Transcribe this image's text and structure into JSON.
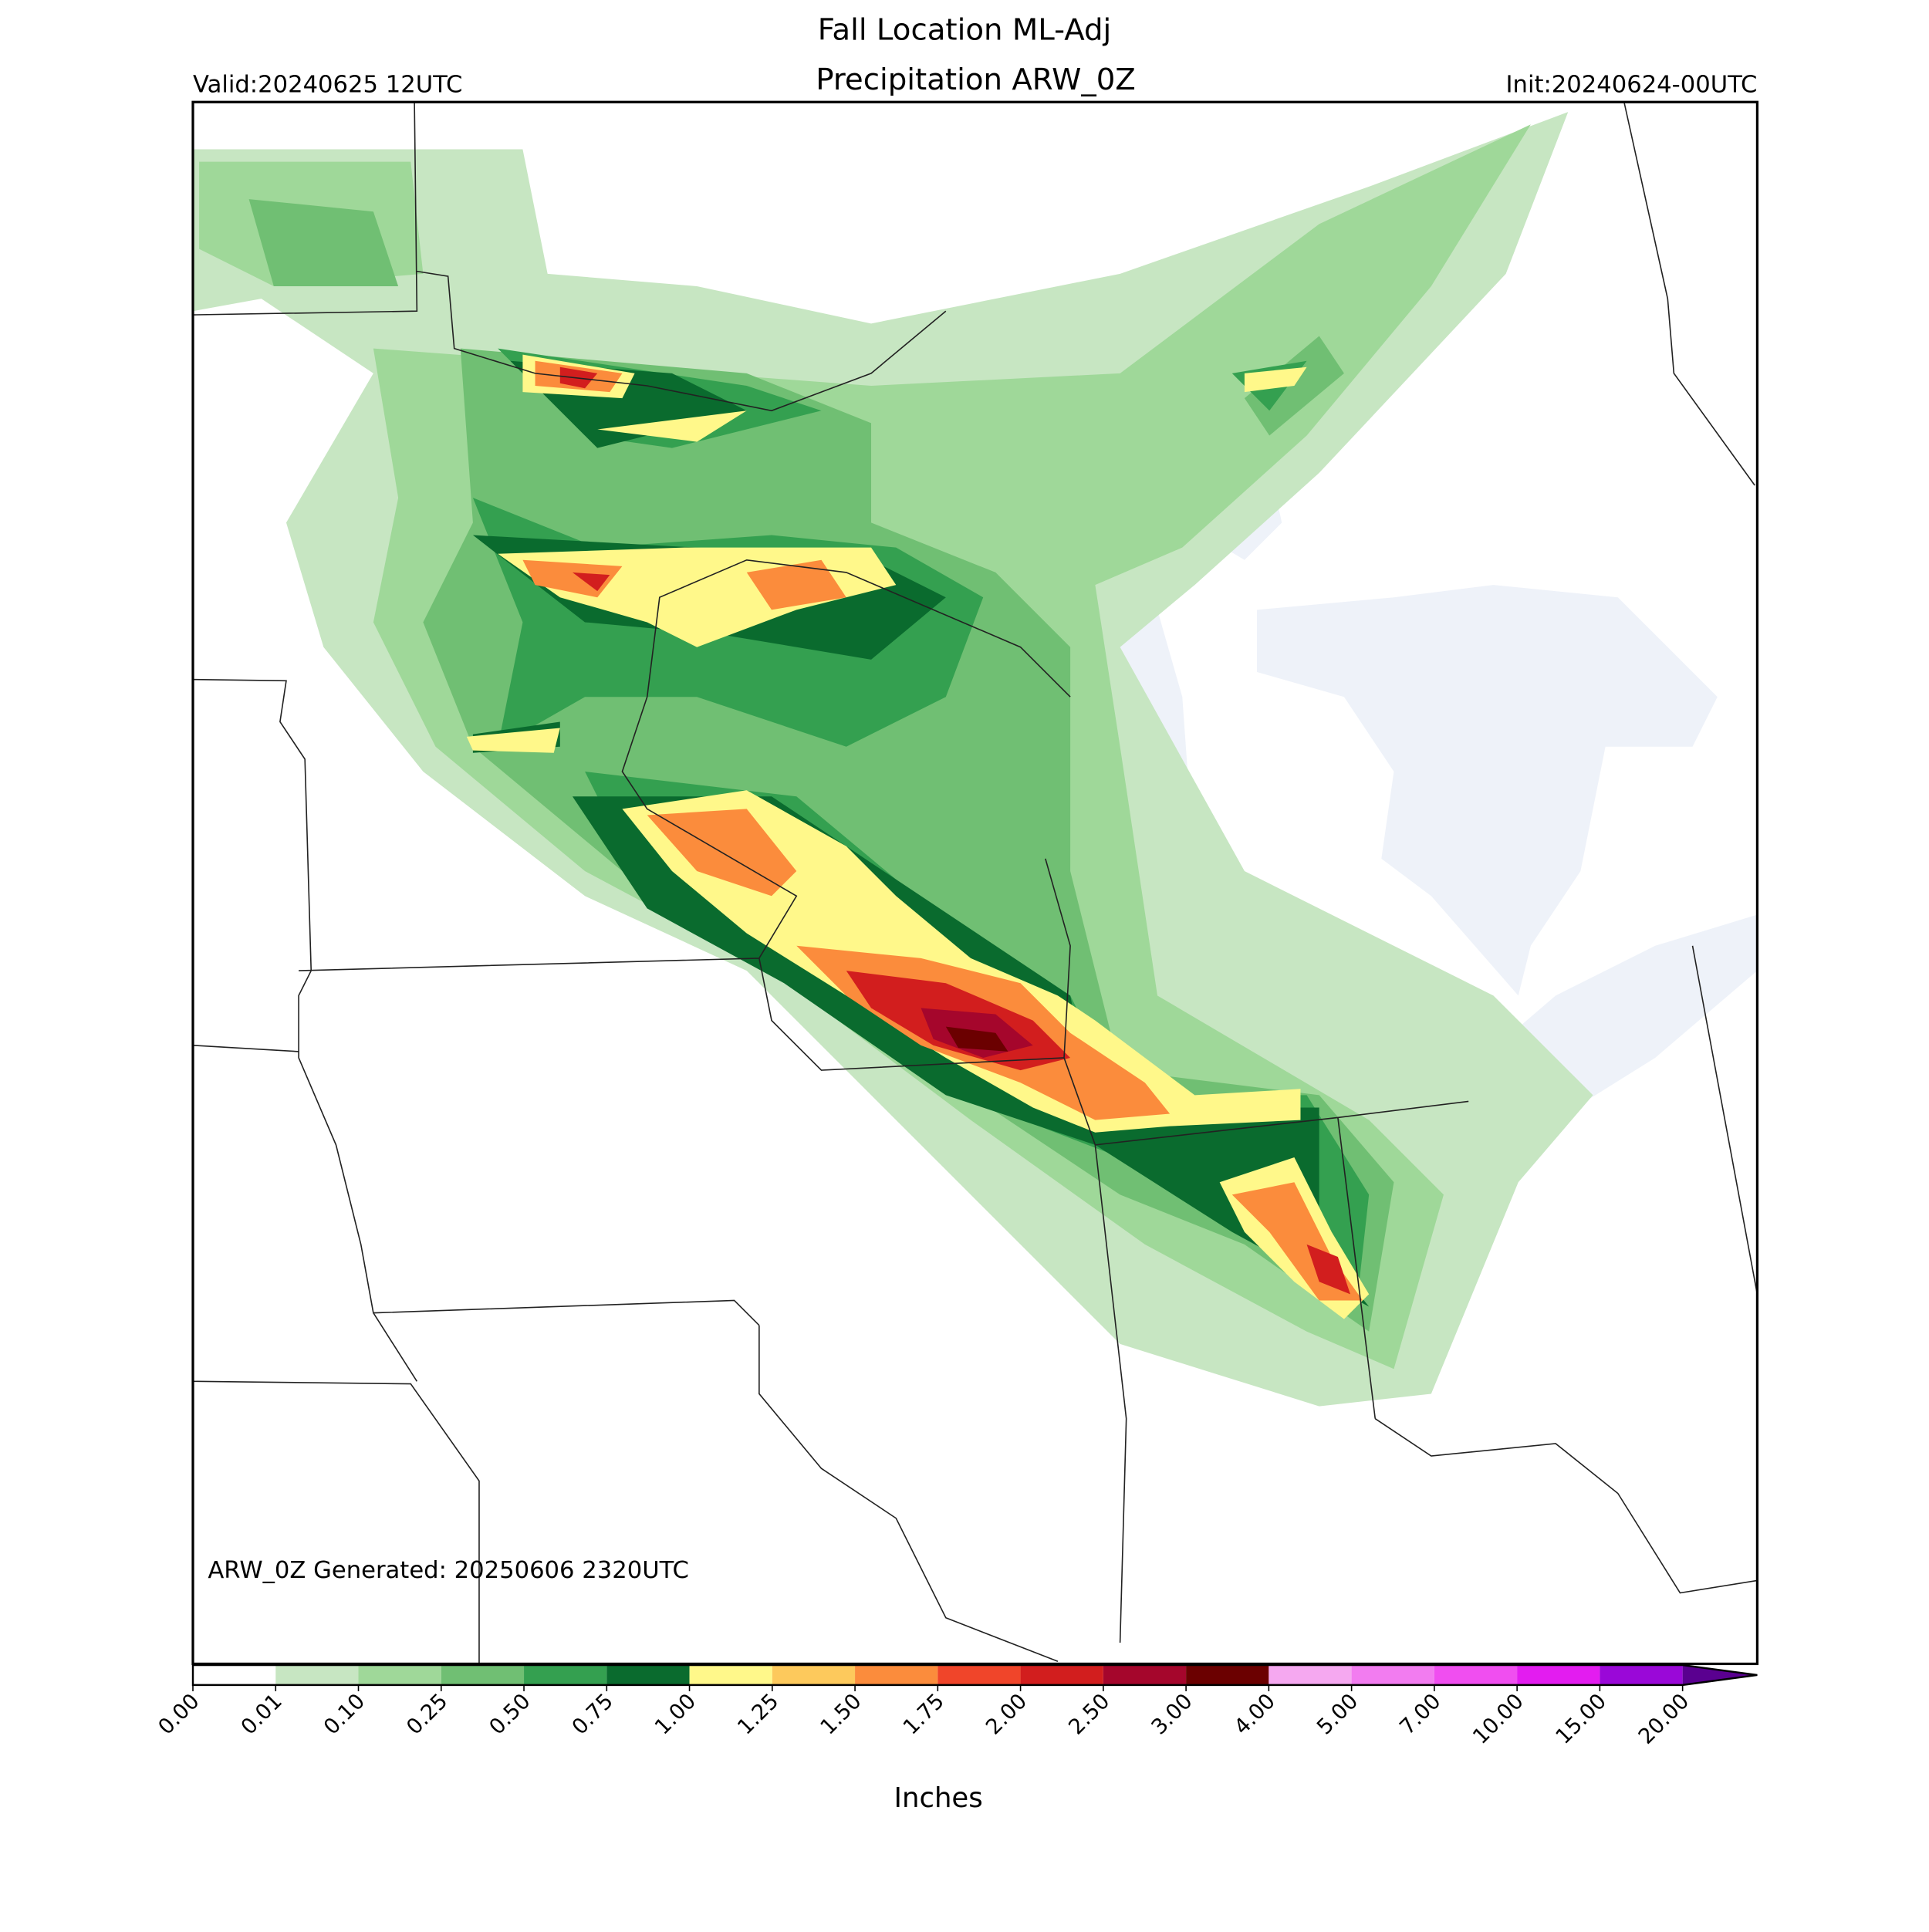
{
  "header": {
    "title_lines": [
      "Fall Location ML-Adj",
      "Precipitation ARW_0Z"
    ],
    "valid": "Valid:20240625 12UTC",
    "init": "Init:20240624-00UTC"
  },
  "map": {
    "note": "ARW_0Z Generated: 20250606 2320UTC"
  },
  "colorbar": {
    "label": "Inches",
    "ticks": [
      {
        "value": 0,
        "label": "0.00"
      },
      {
        "value": 0.01,
        "label": "0.01"
      },
      {
        "value": 0.1,
        "label": "0.10"
      },
      {
        "value": 0.25,
        "label": "0.25"
      },
      {
        "value": 0.5,
        "label": "0.50"
      },
      {
        "value": 0.75,
        "label": "0.75"
      },
      {
        "value": 1,
        "label": "1.00"
      },
      {
        "value": 1.25,
        "label": "1.25"
      },
      {
        "value": 1.5,
        "label": "1.50"
      },
      {
        "value": 1.75,
        "label": "1.75"
      },
      {
        "value": 2,
        "label": "2.00"
      },
      {
        "value": 2.5,
        "label": "2.50"
      },
      {
        "value": 3,
        "label": "3.00"
      },
      {
        "value": 4,
        "label": "4.00"
      },
      {
        "value": 5,
        "label": "5.00"
      },
      {
        "value": 7,
        "label": "7.00"
      },
      {
        "value": 10,
        "label": "10.00"
      },
      {
        "value": 15,
        "label": "15.00"
      },
      {
        "value": 20,
        "label": "20.00"
      }
    ],
    "colors": [
      "#ffffff",
      "#c7e6c2",
      "#9fd899",
      "#70bf73",
      "#34a050",
      "#0a6b2e",
      "#fff88a",
      "#fdc95c",
      "#fb8c3c",
      "#f0452a",
      "#d21e1e",
      "#a5062c",
      "#6b0000",
      "#f5a8f0",
      "#f27cf0",
      "#f04ef0",
      "#e31cf0",
      "#9a08d8"
    ],
    "extend_color": "#5a0090"
  }
}
